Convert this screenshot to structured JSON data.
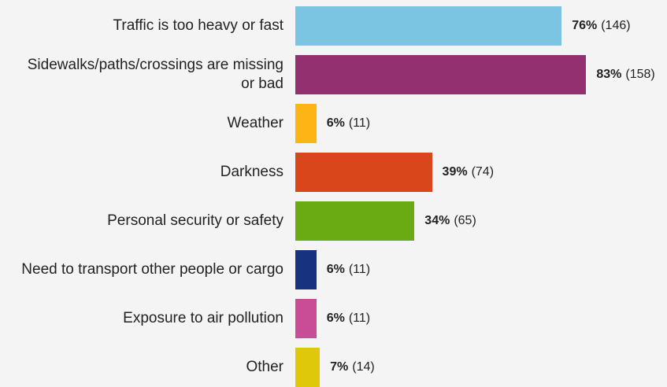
{
  "chart_data": {
    "type": "bar",
    "orientation": "horizontal",
    "categories": [
      "Traffic is too heavy or fast",
      "Sidewalks/paths/crossings are missing or bad",
      "Weather",
      "Darkness",
      "Personal security or safety",
      "Need to transport other people or cargo",
      "Exposure to air pollution",
      "Other"
    ],
    "values": [
      76,
      83,
      6,
      39,
      34,
      6,
      6,
      7
    ],
    "value_labels": [
      "76%",
      "83%",
      "6%",
      "39%",
      "34%",
      "6%",
      "6%",
      "7%"
    ],
    "count_labels": [
      "(146)",
      "(158)",
      "(11)",
      "(74)",
      "(65)",
      "(11)",
      "(11)",
      "(14)"
    ],
    "colors": [
      "#7bc4e2",
      "#93306f",
      "#fdb515",
      "#d9461c",
      "#6aaa12",
      "#17327e",
      "#c94d96",
      "#dfc70a"
    ]
  }
}
